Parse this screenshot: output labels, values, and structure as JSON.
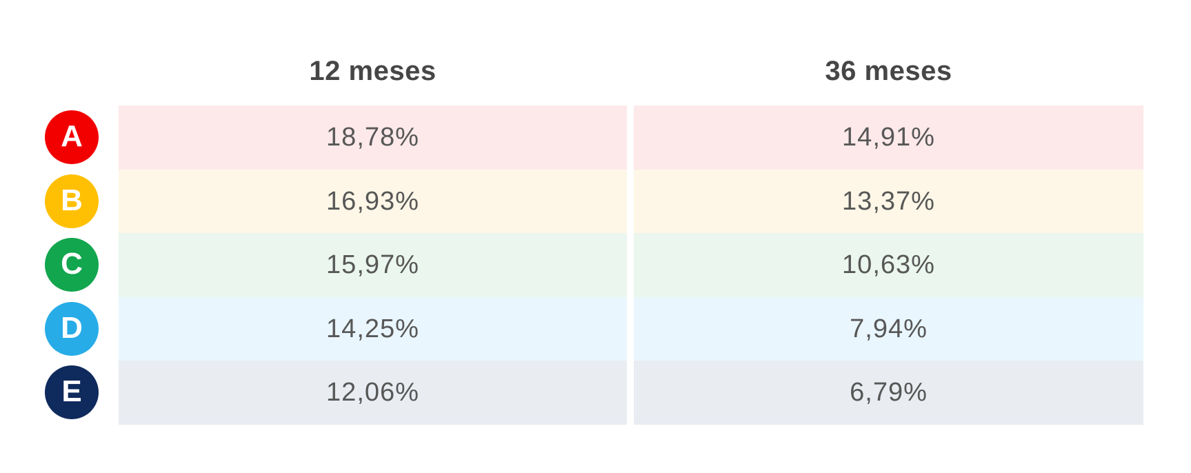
{
  "chart_data": {
    "type": "table",
    "title": "",
    "categories": [
      "A",
      "B",
      "C",
      "D",
      "E"
    ],
    "series": [
      {
        "name": "12 meses",
        "values": [
          18.78,
          16.93,
          15.97,
          14.25,
          12.06
        ]
      },
      {
        "name": "36 meses",
        "values": [
          14.91,
          13.37,
          10.63,
          7.94,
          6.79
        ]
      }
    ],
    "value_unit": "%",
    "decimal_separator": ",",
    "legend_position": "none",
    "grid": false
  },
  "table": {
    "column_headers": [
      "12 meses",
      "36 meses"
    ],
    "rows": [
      {
        "label": "A",
        "badge_color": "#F20000",
        "tint": "#FDE9EA",
        "values": [
          "18,78%",
          "14,91%"
        ]
      },
      {
        "label": "B",
        "badge_color": "#FFC003",
        "tint": "#FEF7E7",
        "values": [
          "16,93%",
          "13,37%"
        ]
      },
      {
        "label": "C",
        "badge_color": "#12A64E",
        "tint": "#EAF6EE",
        "values": [
          "15,97%",
          "10,63%"
        ]
      },
      {
        "label": "D",
        "badge_color": "#27ACE8",
        "tint": "#E9F6FD",
        "values": [
          "14,25%",
          "7,94%"
        ]
      },
      {
        "label": "E",
        "badge_color": "#0F2A5C",
        "tint": "#E9EDF2",
        "values": [
          "12,06%",
          "6,79%"
        ]
      }
    ],
    "colors": {
      "header_text": "#464646",
      "value_text": "#575757",
      "badge_letter": "#FFFFFF",
      "background": "#FFFFFF"
    }
  }
}
